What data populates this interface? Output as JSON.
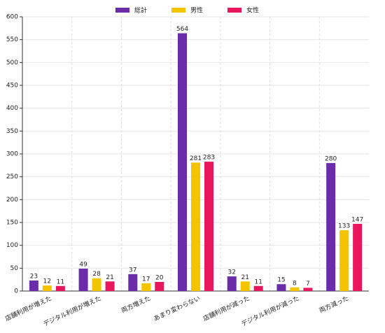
{
  "chart_data": {
    "type": "bar",
    "categories": [
      "店舗利用が増えた",
      "デジタル利用が増えた",
      "両方増えた",
      "あまり変わらない",
      "店舗利用が減った",
      "デジタル利用が減った",
      "両方減った"
    ],
    "series": [
      {
        "name": "総計",
        "color": "#6a2ca8",
        "values": [
          23,
          49,
          37,
          564,
          32,
          15,
          280
        ]
      },
      {
        "name": "男性",
        "color": "#f5c400",
        "values": [
          12,
          28,
          17,
          281,
          21,
          8,
          133
        ]
      },
      {
        "name": "女性",
        "color": "#e8175d",
        "values": [
          11,
          21,
          20,
          283,
          11,
          7,
          147
        ]
      }
    ],
    "ylim": [
      0,
      600
    ],
    "yticks": [
      0,
      50,
      100,
      150,
      200,
      250,
      300,
      350,
      400,
      450,
      500,
      550,
      600
    ],
    "grid": true,
    "legend": "top"
  }
}
